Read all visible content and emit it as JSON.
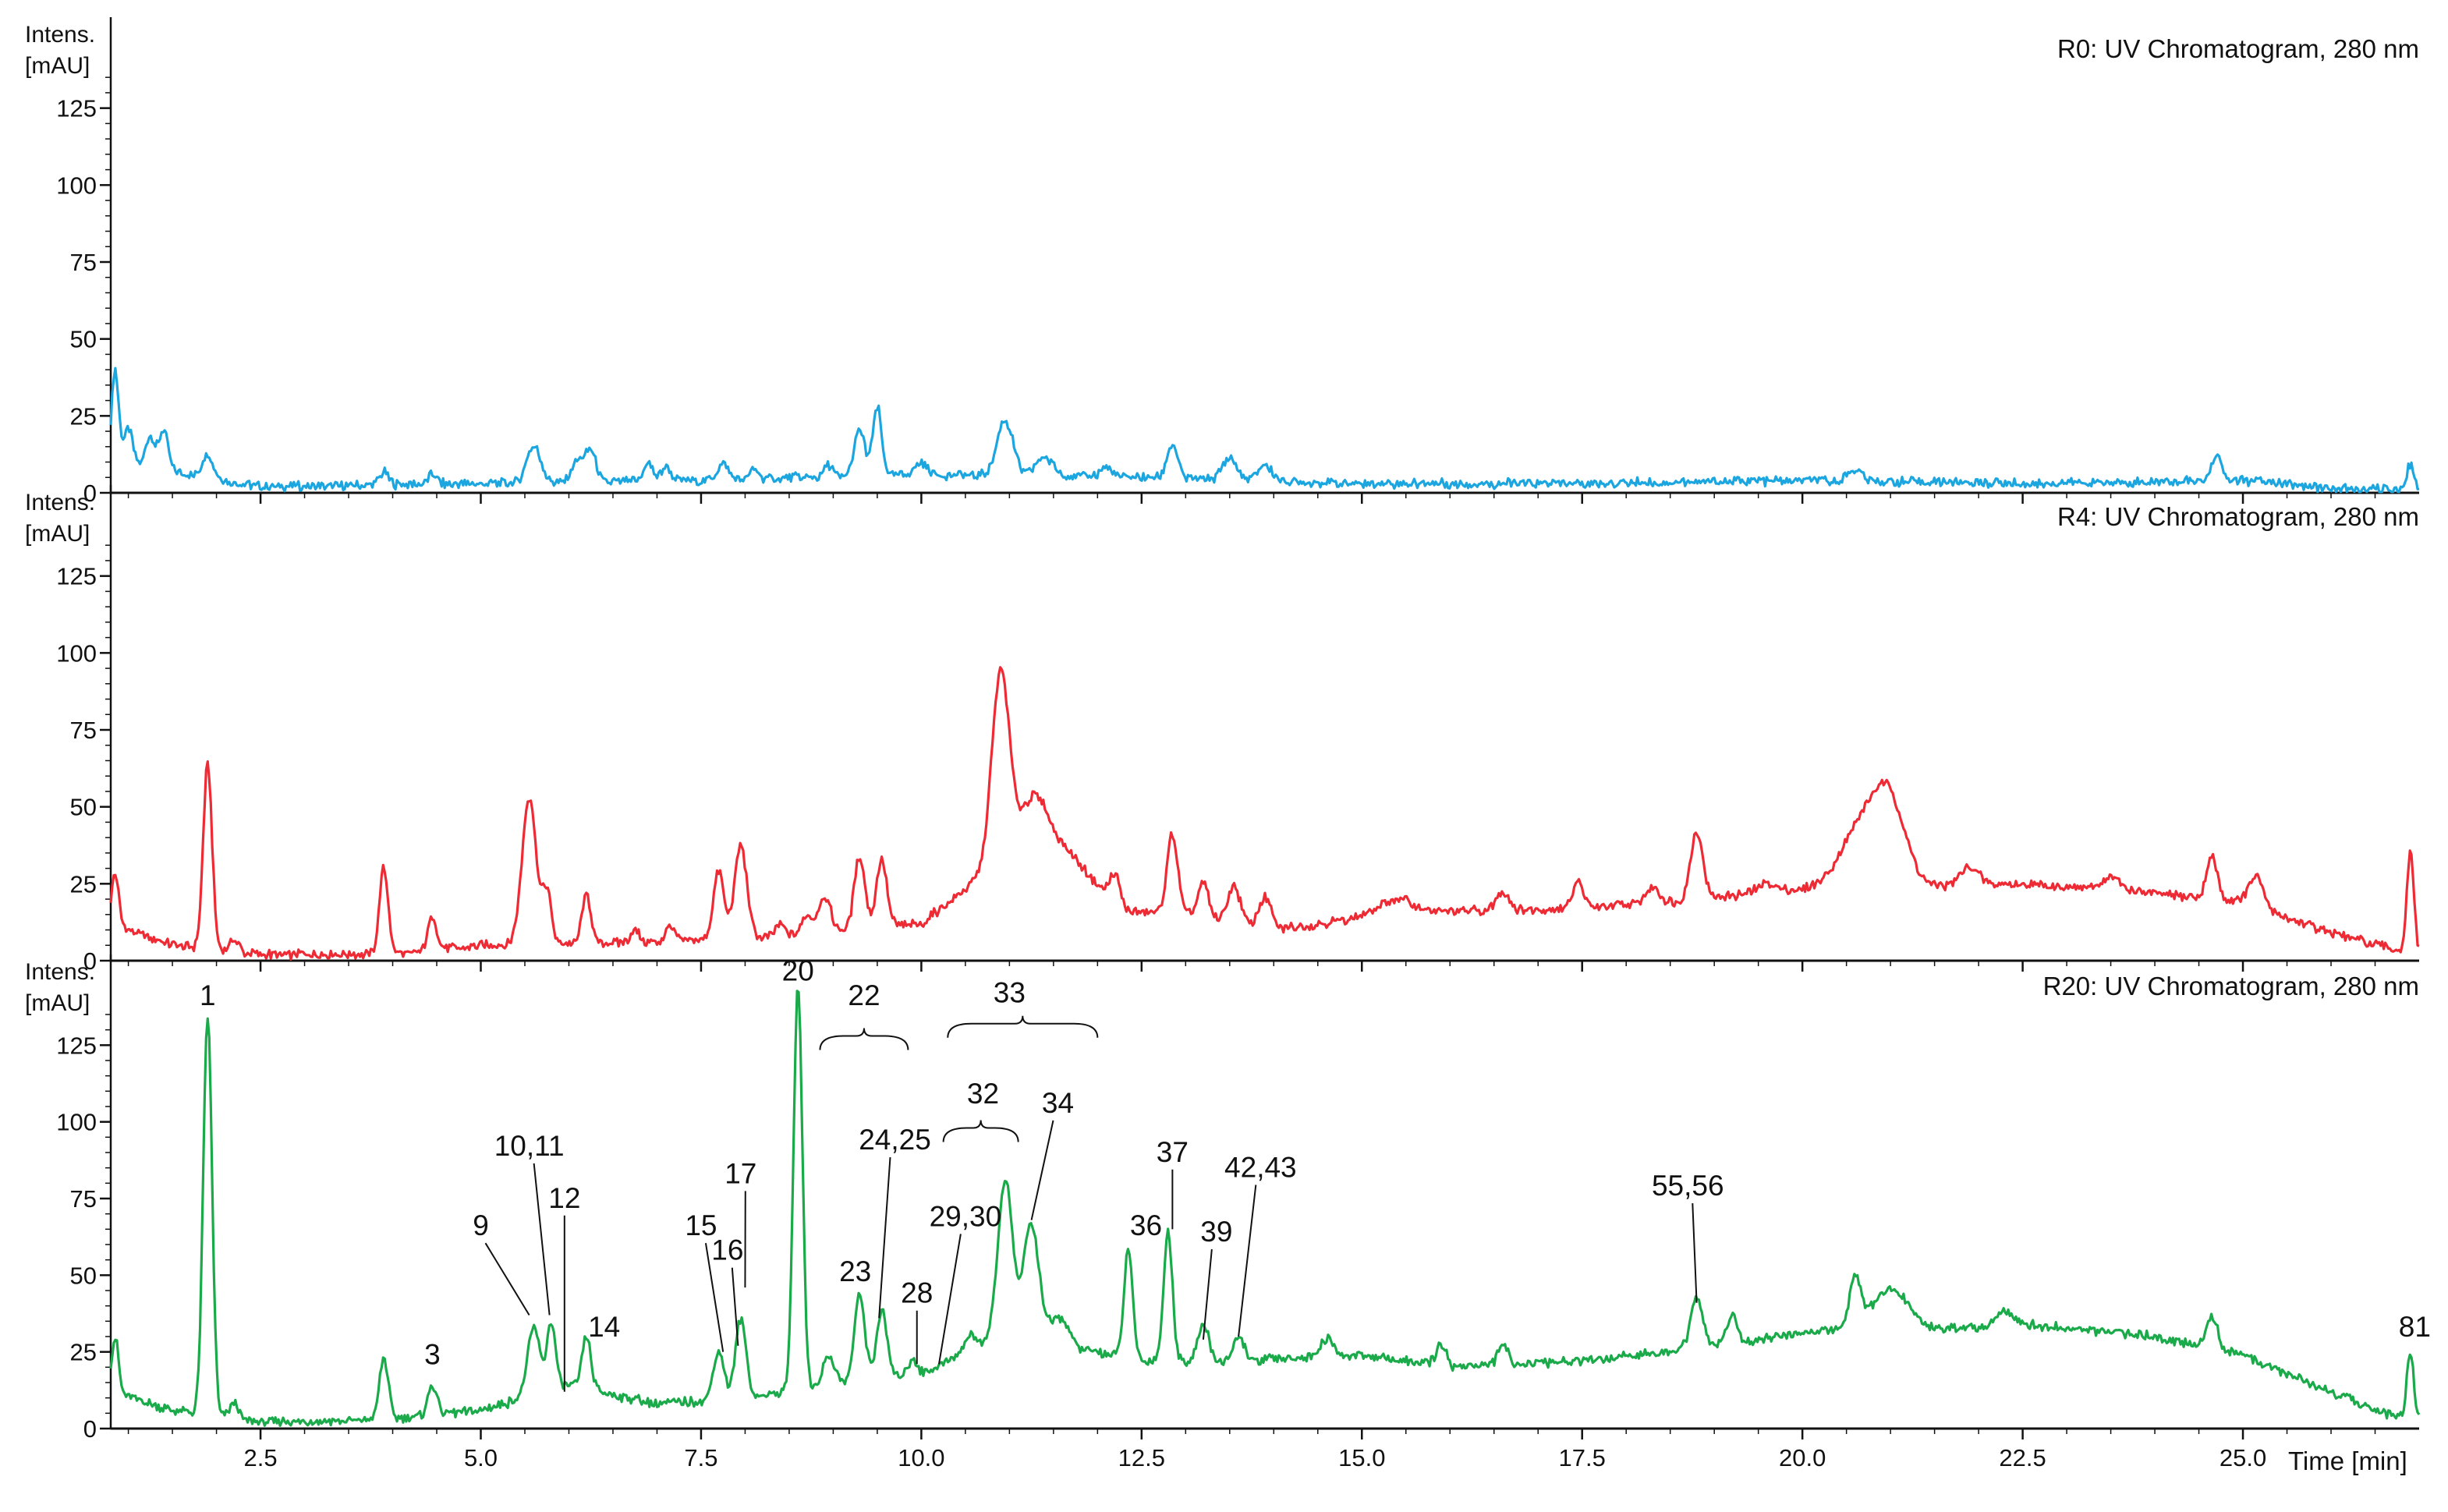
{
  "chart_data": [
    {
      "type": "line",
      "title": "R0: UV Chromatogram, 280 nm",
      "ylabel": "Intens.\n[mAU]",
      "xlabel": "Time [min]",
      "xlim": [
        0.8,
        27.0
      ],
      "ylim": [
        0,
        150
      ],
      "color": "#1ca6e0",
      "grid": false,
      "x_ticks": [
        2.5,
        5.0,
        7.5,
        10.0,
        12.5,
        15.0,
        17.5,
        20.0,
        22.5,
        25.0
      ],
      "y_ticks": [
        0,
        25,
        50,
        75,
        100,
        125
      ],
      "baseline": [
        [
          0.8,
          10
        ],
        [
          2.5,
          2
        ],
        [
          5,
          3
        ],
        [
          7.5,
          4
        ],
        [
          10,
          6
        ],
        [
          12.5,
          5
        ],
        [
          15,
          3
        ],
        [
          17.5,
          3
        ],
        [
          20,
          4
        ],
        [
          22.5,
          3
        ],
        [
          25,
          4
        ],
        [
          26.2,
          1
        ],
        [
          27,
          1
        ]
      ],
      "peaks": [
        [
          0.85,
          30,
          0.04
        ],
        [
          1.0,
          12,
          0.05
        ],
        [
          1.25,
          11,
          0.05
        ],
        [
          1.4,
          13,
          0.05
        ],
        [
          1.9,
          8,
          0.06
        ],
        [
          3.9,
          4,
          0.05
        ],
        [
          4.45,
          3,
          0.05
        ],
        [
          5.6,
          12,
          0.08
        ],
        [
          6.1,
          7,
          0.07
        ],
        [
          6.25,
          10,
          0.06
        ],
        [
          6.9,
          6,
          0.05
        ],
        [
          7.1,
          5,
          0.05
        ],
        [
          7.75,
          5,
          0.06
        ],
        [
          8.1,
          3,
          0.05
        ],
        [
          8.95,
          4,
          0.05
        ],
        [
          9.3,
          15,
          0.06
        ],
        [
          9.5,
          22,
          0.05
        ],
        [
          10.0,
          4,
          0.07
        ],
        [
          10.95,
          18,
          0.09
        ],
        [
          11.4,
          6,
          0.1
        ],
        [
          12.1,
          3,
          0.07
        ],
        [
          12.85,
          11,
          0.06
        ],
        [
          13.5,
          7,
          0.08
        ],
        [
          13.9,
          5,
          0.08
        ],
        [
          20.6,
          4,
          0.08
        ],
        [
          24.7,
          8,
          0.06
        ],
        [
          26.9,
          8,
          0.04
        ]
      ]
    },
    {
      "type": "line",
      "title": "R4: UV Chromatogram, 280 nm",
      "ylabel": "Intens.\n[mAU]",
      "xlabel": "Time [min]",
      "xlim": [
        0.8,
        27.0
      ],
      "ylim": [
        0,
        150
      ],
      "color": "#ee2a34",
      "grid": false,
      "x_ticks": [
        2.5,
        5.0,
        7.5,
        10.0,
        12.5,
        15.0,
        17.5,
        20.0,
        22.5,
        25.0
      ],
      "y_ticks": [
        0,
        25,
        50,
        75,
        100,
        125
      ],
      "baseline": [
        [
          0.8,
          12
        ],
        [
          1.5,
          5
        ],
        [
          2.5,
          2
        ],
        [
          4,
          2
        ],
        [
          5,
          5
        ],
        [
          7,
          6
        ],
        [
          8.5,
          8
        ],
        [
          10,
          12
        ],
        [
          10.8,
          30
        ],
        [
          11.4,
          45
        ],
        [
          11.9,
          28
        ],
        [
          12.3,
          16
        ],
        [
          13,
          15
        ],
        [
          14,
          10
        ],
        [
          15,
          14
        ],
        [
          16,
          16
        ],
        [
          17.5,
          17
        ],
        [
          18.5,
          19
        ],
        [
          19.5,
          22
        ],
        [
          20.5,
          24
        ],
        [
          21,
          26
        ],
        [
          21.4,
          24
        ],
        [
          22.5,
          25
        ],
        [
          24,
          22
        ],
        [
          25,
          19
        ],
        [
          26,
          9
        ],
        [
          26.8,
          3
        ],
        [
          27,
          2
        ]
      ],
      "peaks": [
        [
          0.85,
          17,
          0.04
        ],
        [
          1.9,
          60,
          0.05
        ],
        [
          2.2,
          4,
          0.05
        ],
        [
          3.9,
          28,
          0.05
        ],
        [
          4.45,
          11,
          0.05
        ],
        [
          5.55,
          48,
          0.08
        ],
        [
          5.75,
          17,
          0.05
        ],
        [
          6.2,
          16,
          0.05
        ],
        [
          6.75,
          4,
          0.05
        ],
        [
          7.15,
          5,
          0.05
        ],
        [
          7.7,
          22,
          0.06
        ],
        [
          7.95,
          30,
          0.07
        ],
        [
          8.4,
          4,
          0.06
        ],
        [
          8.7,
          6,
          0.06
        ],
        [
          8.9,
          12,
          0.07
        ],
        [
          9.3,
          24,
          0.06
        ],
        [
          9.55,
          22,
          0.06
        ],
        [
          10.9,
          62,
          0.1
        ],
        [
          11.25,
          12,
          0.12
        ],
        [
          12.2,
          9,
          0.06
        ],
        [
          12.85,
          26,
          0.06
        ],
        [
          13.2,
          11,
          0.06
        ],
        [
          13.55,
          12,
          0.07
        ],
        [
          13.9,
          10,
          0.07
        ],
        [
          15.4,
          5,
          0.2
        ],
        [
          16.6,
          6,
          0.07
        ],
        [
          17.45,
          9,
          0.06
        ],
        [
          18.3,
          5,
          0.08
        ],
        [
          18.8,
          22,
          0.07
        ],
        [
          19.6,
          3,
          0.1
        ],
        [
          20.7,
          20,
          0.25
        ],
        [
          21.0,
          20,
          0.18
        ],
        [
          21.9,
          6,
          0.1
        ],
        [
          23.5,
          4,
          0.1
        ],
        [
          24.65,
          14,
          0.06
        ],
        [
          25.15,
          10,
          0.08
        ],
        [
          26.9,
          33,
          0.04
        ]
      ]
    },
    {
      "type": "line",
      "title": "R20: UV Chromatogram, 280 nm",
      "ylabel": "Intens.\n[mAU]",
      "xlabel": "Time [min]",
      "xlim": [
        0.8,
        27.0
      ],
      "ylim": [
        0,
        150
      ],
      "color": "#1aaa4a",
      "grid": false,
      "x_ticks": [
        2.5,
        5.0,
        7.5,
        10.0,
        12.5,
        15.0,
        17.5,
        20.0,
        22.5,
        25.0
      ],
      "y_ticks": [
        0,
        25,
        50,
        75,
        100,
        125
      ],
      "baseline": [
        [
          0.8,
          12
        ],
        [
          1.5,
          6
        ],
        [
          2.5,
          2
        ],
        [
          4,
          3
        ],
        [
          5,
          6
        ],
        [
          6,
          14
        ],
        [
          7,
          8
        ],
        [
          8,
          10
        ],
        [
          9,
          14
        ],
        [
          10,
          18
        ],
        [
          10.6,
          26
        ],
        [
          11.2,
          38
        ],
        [
          11.8,
          26
        ],
        [
          12.5,
          22
        ],
        [
          13.5,
          22
        ],
        [
          15,
          24
        ],
        [
          16,
          20
        ],
        [
          17.5,
          22
        ],
        [
          18.5,
          25
        ],
        [
          19.5,
          29
        ],
        [
          20.5,
          33
        ],
        [
          21,
          38
        ],
        [
          21.5,
          32
        ],
        [
          22.5,
          34
        ],
        [
          24,
          30
        ],
        [
          25,
          24
        ],
        [
          26,
          12
        ],
        [
          26.8,
          3
        ],
        [
          27,
          2
        ]
      ],
      "peaks": [
        [
          0.85,
          18,
          0.04
        ],
        [
          1.9,
          130,
          0.05
        ],
        [
          2.2,
          5,
          0.05
        ],
        [
          3.9,
          20,
          0.05
        ],
        [
          4.45,
          10,
          0.05
        ],
        [
          5.6,
          22,
          0.07
        ],
        [
          5.8,
          22,
          0.05
        ],
        [
          6.2,
          17,
          0.05
        ],
        [
          7.7,
          16,
          0.06
        ],
        [
          7.95,
          26,
          0.06
        ],
        [
          8.6,
          132,
          0.05
        ],
        [
          8.95,
          10,
          0.07
        ],
        [
          9.3,
          28,
          0.06
        ],
        [
          9.55,
          22,
          0.06
        ],
        [
          9.9,
          5,
          0.05
        ],
        [
          10.55,
          5,
          0.07
        ],
        [
          10.95,
          48,
          0.08
        ],
        [
          11.25,
          30,
          0.08
        ],
        [
          11.6,
          6,
          0.08
        ],
        [
          12.35,
          35,
          0.05
        ],
        [
          12.8,
          42,
          0.05
        ],
        [
          13.2,
          12,
          0.06
        ],
        [
          13.6,
          8,
          0.06
        ],
        [
          14.6,
          6,
          0.07
        ],
        [
          15.9,
          7,
          0.06
        ],
        [
          16.6,
          6,
          0.06
        ],
        [
          18.8,
          16,
          0.07
        ],
        [
          19.2,
          9,
          0.06
        ],
        [
          20.6,
          16,
          0.06
        ],
        [
          21.0,
          8,
          0.2
        ],
        [
          22.3,
          5,
          0.1
        ],
        [
          24.65,
          11,
          0.06
        ],
        [
          26.9,
          22,
          0.04
        ]
      ]
    }
  ],
  "x_axis": {
    "ticks": [
      "2.5",
      "5.0",
      "7.5",
      "10.0",
      "12.5",
      "15.0",
      "17.5",
      "20.0",
      "22.5",
      "25.0"
    ],
    "label": "Time [min]"
  },
  "y_axis": {
    "ticks": [
      "0",
      "25",
      "50",
      "75",
      "100",
      "125"
    ],
    "label_line1": "Intens.",
    "label_line2": "[mAU]"
  },
  "annotations": [
    {
      "label": "1",
      "x": 1.9,
      "y": 138
    },
    {
      "label": "3",
      "x": 4.45,
      "y": 21
    },
    {
      "label": "9",
      "x": 5.0,
      "y": 63,
      "target_x": 5.55,
      "target_y": 37
    },
    {
      "label": "10,11",
      "x": 5.55,
      "y": 89,
      "target_x": 5.78,
      "target_y": 37
    },
    {
      "label": "12",
      "x": 5.95,
      "y": 72,
      "target_x": 5.95,
      "target_y": 12
    },
    {
      "label": "14",
      "x": 6.4,
      "y": 30
    },
    {
      "label": "15",
      "x": 7.5,
      "y": 63,
      "target_x": 7.75,
      "target_y": 25
    },
    {
      "label": "16",
      "x": 7.8,
      "y": 55,
      "target_x": 7.92,
      "target_y": 27
    },
    {
      "label": "17",
      "x": 7.95,
      "y": 80,
      "target_x": 8.0,
      "target_y": 46
    },
    {
      "label": "20",
      "x": 8.6,
      "y": 146
    },
    {
      "label": "22",
      "x": 9.35,
      "y": 138,
      "bracket": [
        8.85,
        9.85,
        128
      ]
    },
    {
      "label": "23",
      "x": 9.25,
      "y": 48
    },
    {
      "label": "24,25",
      "x": 9.7,
      "y": 91,
      "target_x": 9.52,
      "target_y": 36
    },
    {
      "label": "28",
      "x": 9.95,
      "y": 41,
      "target_x": 9.95,
      "target_y": 21
    },
    {
      "label": "29,30",
      "x": 10.5,
      "y": 66,
      "target_x": 10.2,
      "target_y": 21
    },
    {
      "label": "32",
      "x": 10.7,
      "y": 106,
      "bracket": [
        10.25,
        11.1,
        98
      ]
    },
    {
      "label": "33",
      "x": 11.0,
      "y": 139,
      "bracket": [
        10.3,
        12.0,
        132
      ]
    },
    {
      "label": "34",
      "x": 11.55,
      "y": 103,
      "target_x": 11.25,
      "target_y": 68
    },
    {
      "label": "36",
      "x": 12.55,
      "y": 63
    },
    {
      "label": "37",
      "x": 12.85,
      "y": 87,
      "target_x": 12.85,
      "target_y": 65
    },
    {
      "label": "39",
      "x": 13.35,
      "y": 61,
      "target_x": 13.2,
      "target_y": 29
    },
    {
      "label": "42,43",
      "x": 13.85,
      "y": 82,
      "target_x": 13.6,
      "target_y": 30
    },
    {
      "label": "55,56",
      "x": 18.7,
      "y": 76,
      "target_x": 18.8,
      "target_y": 41
    },
    {
      "label": "81",
      "x": 26.95,
      "y": 30
    }
  ]
}
